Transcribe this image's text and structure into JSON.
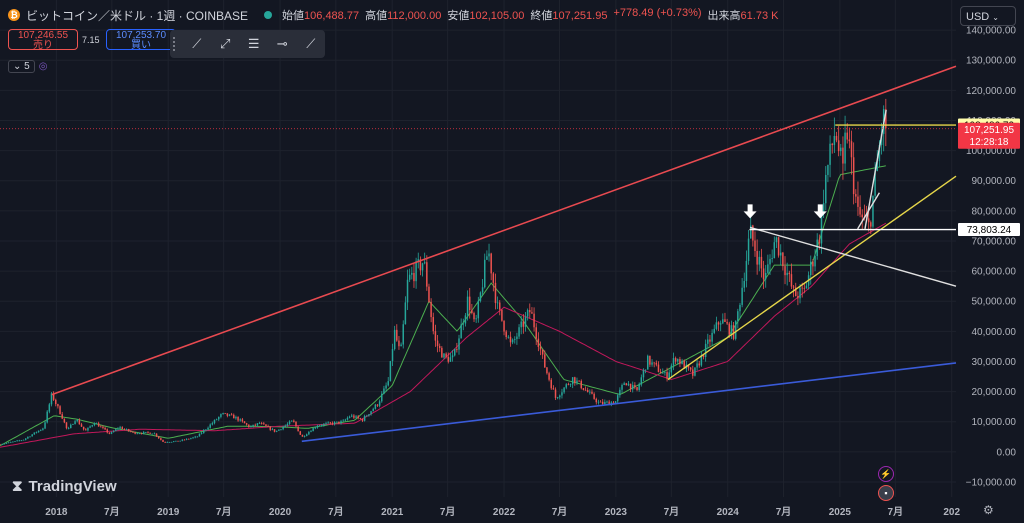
{
  "header": {
    "coin_icon": "bitcoin-icon",
    "symbol": "ビットコイン／米ドル · 1週 · COINBASE",
    "ohlc": [
      {
        "label": "始値",
        "value": "106,488.77"
      },
      {
        "label": "高値",
        "value": "112,000.00"
      },
      {
        "label": "安値",
        "value": "102,105.00"
      },
      {
        "label": "終値",
        "value": "107,251.95"
      }
    ],
    "change": "+778.49 (+0.73%)",
    "volume_label": "出来高",
    "volume": "61.73 K"
  },
  "trade": {
    "sell_price": "107,246.55",
    "sell_label": "売り",
    "spread": "7.15",
    "buy_price": "107,253.70",
    "buy_label": "買い"
  },
  "indicators": {
    "count": "5"
  },
  "currency": "USD",
  "logo_text": "TradingView",
  "colors": {
    "background": "#131722",
    "up": "#26a69a",
    "down": "#ef5350",
    "ma_fast": "#4caf50",
    "ma_slow": "#c2185b",
    "resistance": "#e84a50",
    "support": "#3a5bd9",
    "trend_yellow": "#e6d64a",
    "white_line": "#e0e0e0"
  },
  "chart_data": {
    "type": "candlestick",
    "ylim": [
      -15000,
      150000
    ],
    "yticks": [
      140000,
      130000,
      120000,
      110000,
      100000,
      90000,
      80000,
      70000,
      60000,
      50000,
      40000,
      30000,
      20000,
      10000,
      0,
      -10000
    ],
    "ytick_labels": [
      "140,000.00",
      "130,000.00",
      "120,000.00",
      "110,000.00",
      "100,000.00",
      "90,000.00",
      "80,000.00",
      "70,000.00",
      "60,000.00",
      "50,000.00",
      "40,000.00",
      "30,000.00",
      "20,000.00",
      "10,000.00",
      "0.00",
      "−10,000.00"
    ],
    "xlim": [
      "2017-07-01",
      "2026-01-15"
    ],
    "xticks": [
      {
        "date": "2018-01-01",
        "label": "2018"
      },
      {
        "date": "2018-07-01",
        "label": "7月"
      },
      {
        "date": "2019-01-01",
        "label": "2019"
      },
      {
        "date": "2019-07-01",
        "label": "7月"
      },
      {
        "date": "2020-01-01",
        "label": "2020"
      },
      {
        "date": "2020-07-01",
        "label": "7月"
      },
      {
        "date": "2021-01-01",
        "label": "2021"
      },
      {
        "date": "2021-07-01",
        "label": "7月"
      },
      {
        "date": "2022-01-01",
        "label": "2022"
      },
      {
        "date": "2022-07-01",
        "label": "7月"
      },
      {
        "date": "2023-01-01",
        "label": "2023"
      },
      {
        "date": "2023-07-01",
        "label": "7月"
      },
      {
        "date": "2024-01-01",
        "label": "2024"
      },
      {
        "date": "2024-07-01",
        "label": "7月"
      },
      {
        "date": "2025-01-01",
        "label": "2025"
      },
      {
        "date": "2025-07-01",
        "label": "7月"
      },
      {
        "date": "2026-01-01",
        "label": "202"
      }
    ],
    "price_path": [
      [
        "2017-07-01",
        2500
      ],
      [
        "2017-09-15",
        4000
      ],
      [
        "2017-11-20",
        8000
      ],
      [
        "2017-12-17",
        19000
      ],
      [
        "2018-01-20",
        11500
      ],
      [
        "2018-02-06",
        7000
      ],
      [
        "2018-03-05",
        11000
      ],
      [
        "2018-04-05",
        6800
      ],
      [
        "2018-05-05",
        9800
      ],
      [
        "2018-06-25",
        5900
      ],
      [
        "2018-07-25",
        8200
      ],
      [
        "2018-09-10",
        6300
      ],
      [
        "2018-11-14",
        6300
      ],
      [
        "2018-12-15",
        3300
      ],
      [
        "2019-02-01",
        3500
      ],
      [
        "2019-04-05",
        5000
      ],
      [
        "2019-06-26",
        12500
      ],
      [
        "2019-08-06",
        11500
      ],
      [
        "2019-09-25",
        8200
      ],
      [
        "2019-10-26",
        9500
      ],
      [
        "2019-12-17",
        6700
      ],
      [
        "2020-02-12",
        10300
      ],
      [
        "2020-03-12",
        4800
      ],
      [
        "2020-05-01",
        8800
      ],
      [
        "2020-07-25",
        10000
      ],
      [
        "2020-08-17",
        12000
      ],
      [
        "2020-09-25",
        10600
      ],
      [
        "2020-11-15",
        16000
      ],
      [
        "2020-12-20",
        23500
      ],
      [
        "2021-01-08",
        40000
      ],
      [
        "2021-01-28",
        32000
      ],
      [
        "2021-02-21",
        57000
      ],
      [
        "2021-04-14",
        63500
      ],
      [
        "2021-05-19",
        37000
      ],
      [
        "2021-06-22",
        31000
      ],
      [
        "2021-07-20",
        31000
      ],
      [
        "2021-09-06",
        51000
      ],
      [
        "2021-09-28",
        41000
      ],
      [
        "2021-11-10",
        67500
      ],
      [
        "2021-12-10",
        48000
      ],
      [
        "2022-01-24",
        35000
      ],
      [
        "2022-03-28",
        47000
      ],
      [
        "2022-05-12",
        29000
      ],
      [
        "2022-06-18",
        18000
      ],
      [
        "2022-08-14",
        24500
      ],
      [
        "2022-11-09",
        16000
      ],
      [
        "2022-12-30",
        16500
      ],
      [
        "2023-01-30",
        23500
      ],
      [
        "2023-03-10",
        20000
      ],
      [
        "2023-04-14",
        30500
      ],
      [
        "2023-06-15",
        25000
      ],
      [
        "2023-07-14",
        31500
      ],
      [
        "2023-09-10",
        25500
      ],
      [
        "2023-10-24",
        35000
      ],
      [
        "2023-12-08",
        44000
      ],
      [
        "2024-01-23",
        39000
      ],
      [
        "2024-02-28",
        62000
      ],
      [
        "2024-03-14",
        73000
      ],
      [
        "2024-05-01",
        57000
      ],
      [
        "2024-06-05",
        71000
      ],
      [
        "2024-08-05",
        52000
      ],
      [
        "2024-09-06",
        53000
      ],
      [
        "2024-10-29",
        73000
      ],
      [
        "2024-11-12",
        89000
      ],
      [
        "2024-12-17",
        107000
      ],
      [
        "2025-01-13",
        91000
      ],
      [
        "2025-01-21",
        109500
      ],
      [
        "2025-02-28",
        79000
      ],
      [
        "2025-04-07",
        74500
      ],
      [
        "2025-05-22",
        111000
      ],
      [
        "2025-06-02",
        107252
      ]
    ],
    "moving_averages": [
      {
        "color": "#4caf50",
        "path": [
          [
            "2017-07-01",
            2000
          ],
          [
            "2017-12-25",
            12000
          ],
          [
            "2018-03-10",
            10800
          ],
          [
            "2018-07-01",
            8000
          ],
          [
            "2019-01-01",
            4500
          ],
          [
            "2019-07-15",
            8500
          ],
          [
            "2019-12-01",
            8400
          ],
          [
            "2020-04-01",
            7800
          ],
          [
            "2020-09-01",
            10500
          ],
          [
            "2021-01-01",
            22000
          ],
          [
            "2021-05-01",
            50000
          ],
          [
            "2021-08-01",
            40000
          ],
          [
            "2021-11-20",
            56000
          ],
          [
            "2022-03-01",
            44000
          ],
          [
            "2022-07-15",
            24000
          ],
          [
            "2023-01-15",
            19000
          ],
          [
            "2023-07-01",
            28000
          ],
          [
            "2024-01-01",
            38000
          ],
          [
            "2024-06-01",
            62000
          ],
          [
            "2024-10-01",
            62000
          ],
          [
            "2025-01-01",
            92000
          ],
          [
            "2025-06-02",
            95000
          ]
        ]
      },
      {
        "color": "#c2185b",
        "path": [
          [
            "2017-07-01",
            1500
          ],
          [
            "2018-03-01",
            6000
          ],
          [
            "2018-10-01",
            7500
          ],
          [
            "2019-06-01",
            7000
          ],
          [
            "2020-01-01",
            8500
          ],
          [
            "2020-09-01",
            9500
          ],
          [
            "2021-03-01",
            20000
          ],
          [
            "2021-09-01",
            38000
          ],
          [
            "2022-01-01",
            48000
          ],
          [
            "2022-07-01",
            40000
          ],
          [
            "2023-01-01",
            30000
          ],
          [
            "2023-07-01",
            24000
          ],
          [
            "2024-01-01",
            30000
          ],
          [
            "2024-06-01",
            45000
          ],
          [
            "2024-10-01",
            55000
          ],
          [
            "2025-02-01",
            69000
          ],
          [
            "2025-06-02",
            76000
          ]
        ]
      }
    ],
    "lines": [
      {
        "name": "resistance",
        "color": "#e84a50",
        "from": [
          "2017-12-17",
          19000
        ],
        "to": [
          "2026-01-15",
          128000
        ]
      },
      {
        "name": "support",
        "color": "#3a5bd9",
        "from": [
          "2020-03-12",
          3500
        ],
        "to": [
          "2026-01-15",
          29500
        ]
      },
      {
        "name": "uptrend",
        "color": "#e6d64a",
        "from": [
          "2023-06-20",
          24000
        ],
        "to": [
          "2026-01-15",
          91500
        ]
      },
      {
        "name": "descending",
        "color": "#e0e0e0",
        "from": [
          "2024-03-14",
          74500
        ],
        "to": [
          "2026-01-15",
          55000
        ]
      },
      {
        "name": "lower-wedge",
        "color": "#e0e0e0",
        "from": [
          "2025-02-28",
          74000
        ],
        "to": [
          "2025-05-10",
          86000
        ]
      },
      {
        "name": "upper-wedge",
        "color": "#e0e0e0",
        "from": [
          "2025-03-24",
          74000
        ],
        "to": [
          "2025-06-01",
          113500
        ]
      },
      {
        "name": "level-73803",
        "color": "#ffffff",
        "from": [
          "2024-03-12",
          73803.24
        ],
        "to": [
          "2026-01-15",
          73803.24
        ]
      },
      {
        "name": "level-108486",
        "color": "#e6d64a",
        "from": [
          "2024-12-17",
          108486.72
        ],
        "to": [
          "2026-01-15",
          108486.72
        ]
      }
    ],
    "arrows": [
      {
        "date": "2024-03-14",
        "value": 77500
      },
      {
        "date": "2024-10-29",
        "value": 77500
      }
    ],
    "price_labels": [
      {
        "value": 108486.72,
        "text": "108,486.72",
        "bg": "#fffcaa",
        "fg": "#000000"
      },
      {
        "value": 107251.95,
        "text": "107,251.95",
        "sub": "12:28:18",
        "bg": "#f23645",
        "fg": "#ffffff"
      },
      {
        "value": 73803.24,
        "text": "73,803.24",
        "bg": "#ffffff",
        "fg": "#000000"
      }
    ]
  }
}
